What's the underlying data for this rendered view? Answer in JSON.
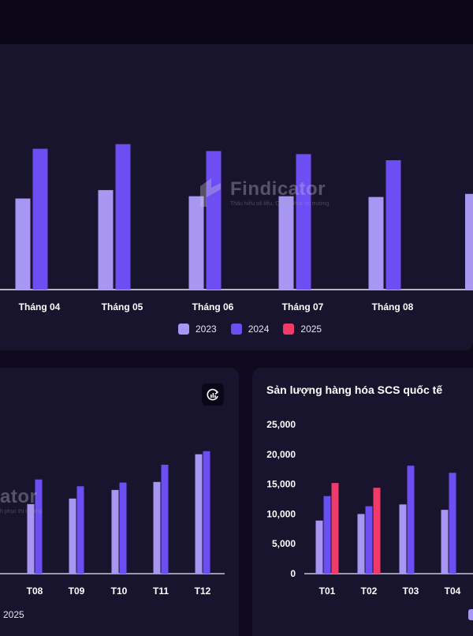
{
  "brand": {
    "name": "Findicator",
    "tagline": "Thấu hiểu số liệu, Chinh phục thị trường"
  },
  "colors": {
    "y2023": "#a797f2",
    "y2024": "#6c4ef2",
    "y2025": "#f03a6b",
    "panel": "#19142e",
    "background": "#0f0a1e"
  },
  "top_chart": {
    "legend": [
      "2023",
      "2024",
      "2025"
    ]
  },
  "left_chart": {
    "legend_partial": "2025",
    "action_icon": "refresh-chart-icon"
  },
  "right_chart": {
    "title": "Sản lượng hàng hóa SCS quốc tế"
  },
  "chart_data": [
    {
      "type": "bar",
      "categories": [
        "Tháng 04",
        "Tháng 05",
        "Tháng 06",
        "Tháng 07",
        "Tháng 08"
      ],
      "series": [
        {
          "name": "2023",
          "values": [
            119,
            130,
            122,
            122,
            121
          ]
        },
        {
          "name": "2024",
          "values": [
            184,
            190,
            181,
            177,
            169
          ]
        },
        {
          "name": "2025",
          "values": [
            null,
            null,
            null,
            null,
            null
          ]
        }
      ],
      "legend_position": "bottom"
    },
    {
      "type": "bar",
      "categories": [
        "T08",
        "T09",
        "T10",
        "T11",
        "T12"
      ],
      "series": [
        {
          "name": "2023",
          "values": [
            11300,
            12200,
            13600,
            14900,
            19400
          ]
        },
        {
          "name": "2024",
          "values": [
            15300,
            14200,
            14800,
            17700,
            19900
          ]
        }
      ],
      "ylim": [
        0,
        25000
      ],
      "legend_position": "bottom"
    },
    {
      "type": "bar",
      "title": "Sản lượng hàng hóa SCS quốc tế",
      "categories": [
        "T01",
        "T02",
        "T03",
        "T04"
      ],
      "series": [
        {
          "name": "2023",
          "values": [
            8900,
            10000,
            11600,
            10700
          ]
        },
        {
          "name": "2024",
          "values": [
            13000,
            11300,
            18100,
            16900
          ]
        },
        {
          "name": "2025",
          "values": [
            15200,
            14400,
            null,
            null
          ]
        }
      ],
      "y_ticks": [
        "0",
        "5,000",
        "10,000",
        "15,000",
        "20,000",
        "25,000"
      ],
      "ylim": [
        0,
        25000
      ],
      "grid": false
    }
  ]
}
